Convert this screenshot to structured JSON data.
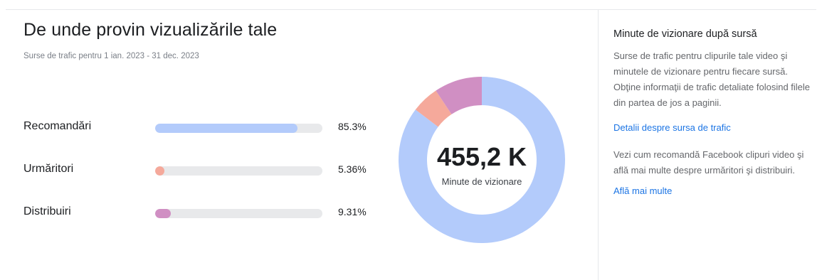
{
  "header": {
    "title": "De unde provin vizualizările tale",
    "subtitle": "Surse de trafic pentru 1 ian. 2023 - 31 dec. 2023"
  },
  "sources": [
    {
      "label": "Recomandări",
      "percent_text": "85.3%",
      "value": 85.3,
      "color": "#b3cbfb"
    },
    {
      "label": "Urmăritori",
      "percent_text": "5.36%",
      "value": 5.36,
      "color": "#f5a99b"
    },
    {
      "label": "Distribuiri",
      "percent_text": "9.31%",
      "value": 9.31,
      "color": "#d08fc3"
    }
  ],
  "donut": {
    "value": "455,2 K",
    "caption": "Minute de vizionare"
  },
  "sidebar": {
    "title": "Minute de vizionare după sursă",
    "description": "Surse de trafic pentru clipurile tale video şi minutele de vizionare pentru fiecare sursă. Obţine informaţii de trafic detaliate folosind filele din partea de jos a paginii.",
    "link_1": "Detalii despre sursa de trafic",
    "description_2": "Vezi cum recomandă Facebook clipuri video şi află mai multe despre urmăritori şi distribuiri.",
    "link_2": "Află mai multe"
  },
  "colors": {
    "accent_link": "#1b74e4",
    "bar_track": "#e8e9eb"
  }
}
